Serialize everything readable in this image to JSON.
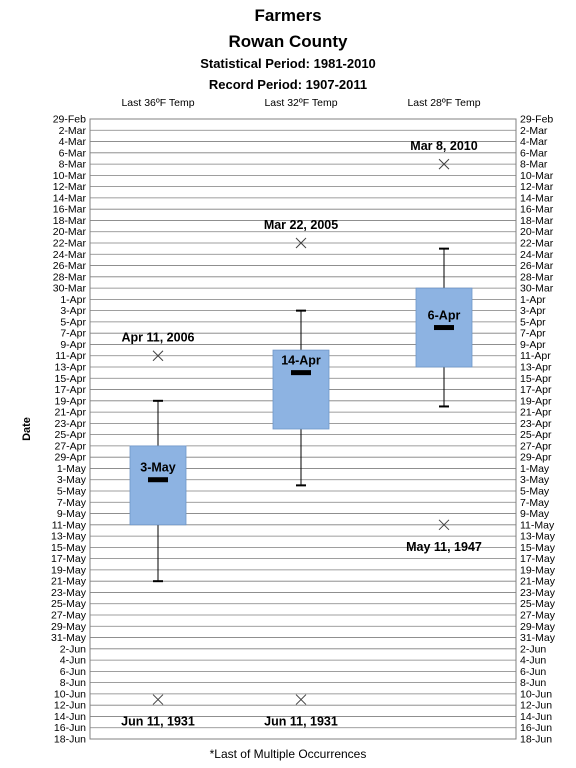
{
  "titles": {
    "line1": "Farmers",
    "line2": "Rowan County",
    "line3": "Statistical Period: 1981-2010",
    "line4": "Record Period: 1907-2011"
  },
  "footnote": "*Last of Multiple Occurrences",
  "chart_data": {
    "type": "box",
    "ylabel": "Date",
    "y_axis_reversed": true,
    "y_ticks": [
      "29-Feb",
      "2-Mar",
      "4-Mar",
      "6-Mar",
      "8-Mar",
      "10-Mar",
      "12-Mar",
      "14-Mar",
      "16-Mar",
      "18-Mar",
      "20-Mar",
      "22-Mar",
      "24-Mar",
      "26-Mar",
      "28-Mar",
      "30-Mar",
      "1-Apr",
      "3-Apr",
      "5-Apr",
      "7-Apr",
      "9-Apr",
      "11-Apr",
      "13-Apr",
      "15-Apr",
      "17-Apr",
      "19-Apr",
      "21-Apr",
      "23-Apr",
      "25-Apr",
      "27-Apr",
      "29-Apr",
      "1-May",
      "3-May",
      "5-May",
      "7-May",
      "9-May",
      "11-May",
      "13-May",
      "15-May",
      "17-May",
      "19-May",
      "21-May",
      "23-May",
      "25-May",
      "27-May",
      "29-May",
      "31-May",
      "2-Jun",
      "4-Jun",
      "6-Jun",
      "8-Jun",
      "10-Jun",
      "12-Jun",
      "14-Jun",
      "16-Jun",
      "18-Jun"
    ],
    "grid": true,
    "categories": [
      "Last 36ºF Temp",
      "Last 32ºF Temp",
      "Last 28ºF Temp"
    ],
    "boxes": [
      {
        "category": "Last 36ºF Temp",
        "whisker_low": "19-Apr",
        "q1": "27-Apr",
        "median": "3-May",
        "q3": "11-May",
        "whisker_high": "21-May",
        "median_label": "3-May",
        "records": [
          {
            "date": "11-Apr",
            "label": "Apr 11, 2006"
          },
          {
            "date": "11-Jun",
            "label": "Jun 11, 1931"
          }
        ]
      },
      {
        "category": "Last 32ºF Temp",
        "whisker_low": "3-Apr",
        "q1": "10-Apr",
        "median": "14-Apr",
        "q3": "24-Apr",
        "whisker_high": "4-May",
        "median_label": "14-Apr",
        "records": [
          {
            "date": "22-Mar",
            "label": "Mar 22, 2005"
          },
          {
            "date": "11-Jun",
            "label": "Jun 11, 1931"
          }
        ]
      },
      {
        "category": "Last 28ºF Temp",
        "whisker_low": "23-Mar",
        "q1": "30-Mar",
        "median": "6-Apr",
        "q3": "13-Apr",
        "whisker_high": "20-Apr",
        "median_label": "6-Apr",
        "records": [
          {
            "date": "8-Mar",
            "label": "Mar 8, 2010"
          },
          {
            "date": "11-May",
            "label": "May 11, 1947"
          }
        ]
      }
    ],
    "colors": {
      "box": "#8db3e2",
      "box_edge": "#6f96c8",
      "mark": "#000000",
      "grid": "#7f7f7f"
    }
  }
}
